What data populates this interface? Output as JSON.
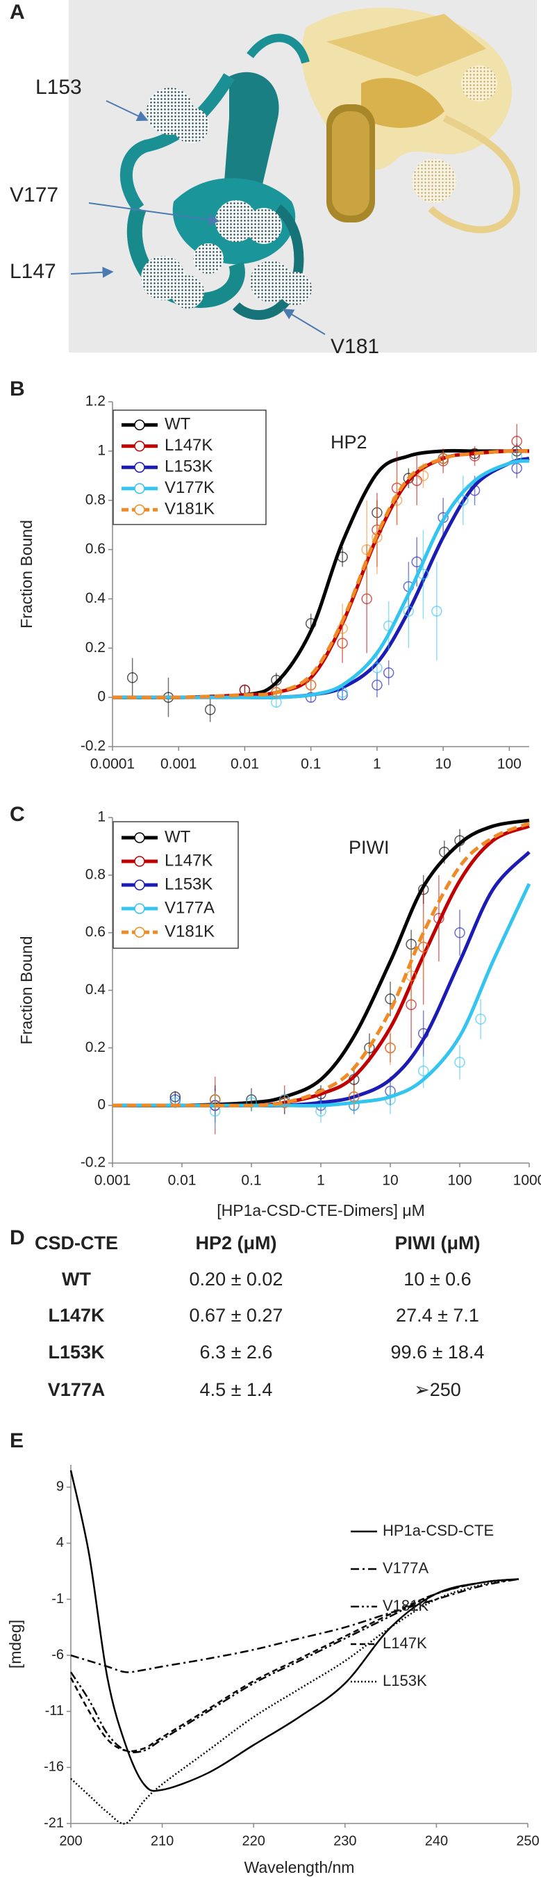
{
  "panel_a": {
    "label": "A",
    "annotations": [
      "L153",
      "V177",
      "L147",
      "V181"
    ]
  },
  "chart_data": [
    {
      "panel": "B",
      "type": "line",
      "xscale": "log",
      "annotation": "HP2",
      "ylabel": "Fraction Bound",
      "x": [
        0.0001,
        0.001,
        0.01,
        0.03,
        0.1,
        0.3,
        1,
        3,
        10,
        30,
        100,
        200
      ],
      "xlim": [
        0.0001,
        200
      ],
      "xticks": [
        0.0001,
        0.001,
        0.01,
        0.1,
        1,
        10,
        100
      ],
      "ylim": [
        -0.2,
        1.2
      ],
      "yticks": [
        -0.2,
        0,
        0.2,
        0.4,
        0.6,
        0.8,
        1,
        1.2
      ],
      "legend": "upper left",
      "series": [
        {
          "name": "WT",
          "color": "#000000",
          "dash": false,
          "values": [
            0,
            0,
            0.01,
            0.06,
            0.27,
            0.63,
            0.91,
            0.98,
            1,
            1,
            1,
            1
          ],
          "points_x": [
            0.0002,
            0.0007,
            0.003,
            0.01,
            0.03,
            0.1,
            0.3,
            1,
            3,
            10,
            30,
            130
          ],
          "points_y": [
            0.08,
            0,
            -0.05,
            0.03,
            0.07,
            0.3,
            0.57,
            0.75,
            0.89,
            0.97,
            0.99,
            1.0
          ],
          "points_err": [
            0.08,
            0.08,
            0.05,
            0.02,
            0.03,
            0.04,
            0.04,
            0.05,
            0.04,
            0.03,
            0.02,
            0.03
          ]
        },
        {
          "name": "L147K",
          "color": "#c00000",
          "dash": false,
          "values": [
            0,
            0,
            0.01,
            0.02,
            0.08,
            0.3,
            0.65,
            0.88,
            0.97,
            0.99,
            1,
            1
          ],
          "points_x": [
            0.01,
            0.03,
            0.1,
            0.3,
            0.7,
            1,
            2,
            4,
            10,
            30,
            130
          ],
          "points_y": [
            0.03,
            0.02,
            0.05,
            0.22,
            0.4,
            0.68,
            0.85,
            0.88,
            0.96,
            0.98,
            1.04
          ],
          "points_err": [
            0.02,
            0.02,
            0.03,
            0.08,
            0.22,
            0.15,
            0.15,
            0.1,
            0.05,
            0.04,
            0.07
          ]
        },
        {
          "name": "L153K",
          "color": "#1c1cb4",
          "dash": false,
          "values": [
            0,
            0,
            0,
            0,
            0.01,
            0.04,
            0.14,
            0.35,
            0.65,
            0.86,
            0.95,
            0.97
          ],
          "points_x": [
            0.1,
            0.3,
            1,
            1.5,
            3,
            4,
            10,
            30,
            130
          ],
          "points_y": [
            0,
            0.01,
            0.05,
            0.1,
            0.45,
            0.55,
            0.73,
            0.84,
            0.93
          ],
          "points_err": [
            0.02,
            0.02,
            0.05,
            0.05,
            0.1,
            0.1,
            0.08,
            0.06,
            0.04
          ]
        },
        {
          "name": "V177K",
          "color": "#33c4f0",
          "dash": false,
          "values": [
            0,
            0,
            0,
            0,
            0.01,
            0.05,
            0.18,
            0.42,
            0.72,
            0.88,
            0.95,
            0.96
          ],
          "points_x": [
            0.03,
            0.3,
            1,
            1.5,
            3,
            5,
            8,
            20,
            130
          ],
          "points_y": [
            -0.02,
            0.02,
            0.12,
            0.29,
            0.35,
            0.5,
            0.35,
            0.8,
            0.98
          ],
          "points_err": [
            0.02,
            0.03,
            0.05,
            0.1,
            0.15,
            0.18,
            0.2,
            0.1,
            0.04
          ]
        },
        {
          "name": "V181K",
          "color": "#f08a24",
          "dash": true,
          "values": [
            0,
            0,
            0.01,
            0.02,
            0.09,
            0.31,
            0.66,
            0.89,
            0.97,
            0.99,
            1,
            1
          ],
          "points_x": [
            0.03,
            0.1,
            0.3,
            0.7,
            1,
            2,
            5,
            10
          ],
          "points_y": [
            0.02,
            0.05,
            0.28,
            0.6,
            0.65,
            0.8,
            0.9,
            0.97
          ],
          "points_err": [
            0.02,
            0.03,
            0.1,
            0.2,
            0.15,
            0.1,
            0.05,
            0.03
          ]
        }
      ]
    },
    {
      "panel": "C",
      "type": "line",
      "xscale": "log",
      "annotation": "PIWI",
      "ylabel": "Fraction Bound",
      "xlabel": "[HP1a-CSD-CTE-Dimers] μM",
      "x": [
        0.001,
        0.01,
        0.1,
        0.3,
        1,
        3,
        10,
        30,
        100,
        300,
        1000
      ],
      "xlim": [
        0.001,
        1000
      ],
      "xticks": [
        0.001,
        0.01,
        0.1,
        1,
        10,
        100,
        1000
      ],
      "ylim": [
        -0.2,
        1
      ],
      "yticks": [
        -0.2,
        0,
        0.2,
        0.4,
        0.6,
        0.8,
        1
      ],
      "legend": "upper left",
      "series": [
        {
          "name": "WT",
          "color": "#000000",
          "dash": false,
          "values": [
            0,
            0,
            0.01,
            0.03,
            0.09,
            0.24,
            0.5,
            0.76,
            0.91,
            0.97,
            0.99
          ],
          "points_x": [
            0.008,
            0.03,
            0.1,
            0.3,
            1,
            3,
            5,
            10,
            20,
            30,
            60,
            100
          ],
          "points_y": [
            0.03,
            0.02,
            0.02,
            0.01,
            0.04,
            0.09,
            0.2,
            0.37,
            0.56,
            0.75,
            0.88,
            0.92
          ],
          "points_err": [
            0.02,
            0.05,
            0.04,
            0.03,
            0.03,
            0.04,
            0.05,
            0.06,
            0.05,
            0.05,
            0.04,
            0.04
          ]
        },
        {
          "name": "L147K",
          "color": "#c00000",
          "dash": false,
          "values": [
            0,
            0,
            0,
            0.01,
            0.04,
            0.1,
            0.27,
            0.52,
            0.78,
            0.92,
            0.97
          ],
          "points_x": [
            0.03,
            0.3,
            3,
            10,
            20,
            30,
            50
          ],
          "points_y": [
            0,
            0.02,
            0.03,
            0.2,
            0.35,
            0.55,
            0.65
          ],
          "points_err": [
            0.1,
            0.05,
            0.05,
            0.05,
            0.15,
            0.2,
            0.15
          ]
        },
        {
          "name": "L153K",
          "color": "#1c1cb4",
          "dash": false,
          "values": [
            0,
            0,
            0,
            0,
            0.01,
            0.03,
            0.09,
            0.23,
            0.5,
            0.75,
            0.88
          ],
          "points_x": [
            0.008,
            0.03,
            0.3,
            1,
            3,
            10,
            30,
            100
          ],
          "points_y": [
            0.02,
            0,
            0.01,
            0,
            0,
            0.05,
            0.25,
            0.6
          ],
          "points_err": [
            0.02,
            0.06,
            0.04,
            0.03,
            0.03,
            0.05,
            0.08,
            0.08
          ]
        },
        {
          "name": "V177A",
          "color": "#33c4f0",
          "dash": false,
          "values": [
            0,
            0,
            0,
            0,
            0,
            0.01,
            0.03,
            0.09,
            0.24,
            0.5,
            0.77
          ],
          "points_x": [
            0.008,
            0.03,
            0.1,
            0.3,
            1,
            3,
            10,
            30,
            100,
            200
          ],
          "points_y": [
            0.01,
            -0.02,
            0.01,
            0.02,
            -0.02,
            0,
            0.02,
            0.12,
            0.15,
            0.3
          ],
          "points_err": [
            0.02,
            0.06,
            0.03,
            0.03,
            0.04,
            0.03,
            0.05,
            0.06,
            0.06,
            0.07
          ]
        },
        {
          "name": "V181K",
          "color": "#f08a24",
          "dash": true,
          "values": [
            0,
            0,
            0,
            0.01,
            0.05,
            0.13,
            0.33,
            0.6,
            0.83,
            0.93,
            0.98
          ],
          "points_x": [
            0.03,
            0.3,
            3,
            10,
            20,
            30
          ],
          "points_y": [
            0.02,
            0.01,
            0.03,
            0.2,
            0.45,
            0.55
          ],
          "points_err": [
            0.03,
            0.03,
            0.04,
            0.06,
            0.1,
            0.12
          ]
        }
      ]
    },
    {
      "panel": "E",
      "type": "line",
      "xscale": "linear",
      "ylabel": "[mdeg]",
      "xlabel": "Wavelength/nm",
      "x": [
        200,
        202,
        204,
        206,
        208,
        210,
        215,
        220,
        225,
        230,
        235,
        240,
        245,
        249
      ],
      "xlim": [
        200,
        250
      ],
      "xticks": [
        200,
        210,
        220,
        230,
        240,
        250
      ],
      "ylim": [
        -21,
        11
      ],
      "yticks": [
        -21,
        -16,
        -11,
        -6,
        -1,
        4,
        9
      ],
      "legend": "right",
      "series": [
        {
          "name": "HP1a-CSD-CTE",
          "color": "#000000",
          "line_style": "solid",
          "values": [
            10.5,
            3,
            -8,
            -14,
            -17.5,
            -18,
            -16.5,
            -14,
            -11.5,
            -8.5,
            -3.5,
            -0.5,
            0.5,
            0.8
          ]
        },
        {
          "name": "V177A",
          "color": "#000000",
          "line_style": "dashdot",
          "values": [
            -6,
            -6.5,
            -7,
            -7.5,
            -7.3,
            -7,
            -6.3,
            -5.5,
            -4.5,
            -3.5,
            -2.2,
            -1,
            0.2,
            0.8
          ]
        },
        {
          "name": "V181K",
          "color": "#000000",
          "line_style": "dashdotdot",
          "values": [
            -7.5,
            -10,
            -13,
            -14.5,
            -14.5,
            -13.5,
            -11,
            -8.5,
            -6.5,
            -4.5,
            -2.5,
            -0.5,
            0.5,
            0.8
          ]
        },
        {
          "name": "L147K",
          "color": "#000000",
          "line_style": "dashed",
          "values": [
            -8,
            -11,
            -13.5,
            -14.5,
            -14.3,
            -13.3,
            -10.8,
            -8.3,
            -6.3,
            -4.3,
            -2.3,
            -0.5,
            0.5,
            0.8
          ]
        },
        {
          "name": "L153K",
          "color": "#000000",
          "line_style": "dotted",
          "values": [
            -17,
            -18.5,
            -20,
            -21,
            -19,
            -17.5,
            -14.5,
            -11.5,
            -9,
            -6.5,
            -3.5,
            -1,
            0.3,
            0.8
          ]
        }
      ]
    }
  ],
  "table": {
    "label": "D",
    "header": [
      "CSD-CTE",
      "HP2 (μM)",
      "PIWI (μM)"
    ],
    "rows": [
      [
        "WT",
        "0.20 ± 0.02",
        "10 ± 0.6"
      ],
      [
        "L147K",
        "0.67 ± 0.27",
        "27.4 ± 7.1"
      ],
      [
        "L153K",
        "6.3 ± 2.6",
        "99.6 ± 18.4"
      ],
      [
        "V177A",
        "4.5 ± 1.4",
        "➢250"
      ]
    ]
  }
}
